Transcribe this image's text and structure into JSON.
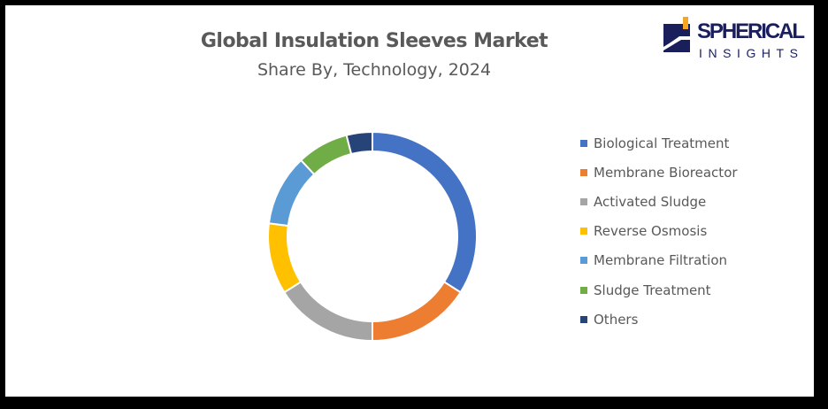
{
  "logo": {
    "text_top": "SPHERICAL",
    "text_bottom": "INSIGHTS"
  },
  "chart_data": {
    "type": "pie",
    "donut": true,
    "title": "Global Insulation Sleeves Market",
    "subtitle": "Share By, Technology, 2024",
    "legend_position": "right",
    "categories": [
      "Biological Treatment",
      "Membrane Bioreactor",
      "Activated Sludge",
      "Reverse Osmosis",
      "Membrane Filtration",
      "Sludge Treatment",
      "Others"
    ],
    "values": [
      34,
      16,
      16,
      11,
      11,
      8,
      4
    ],
    "colors": [
      "#4472C4",
      "#ED7D31",
      "#A5A5A5",
      "#FFC000",
      "#5B9BD5",
      "#70AD47",
      "#264478"
    ]
  }
}
